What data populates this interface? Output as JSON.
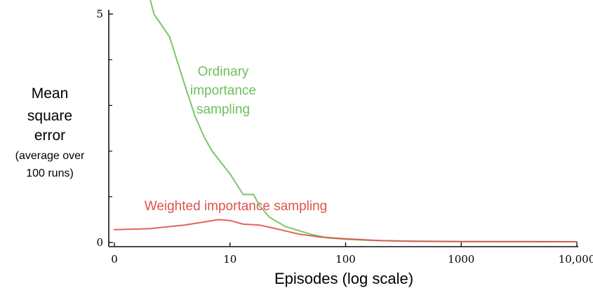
{
  "chart_data": {
    "type": "line",
    "xscale": "log",
    "xlabel": "Episodes (log scale)",
    "ylabel_lines": [
      "Mean",
      "square",
      "error"
    ],
    "ylabel_sub_lines": [
      "(average over",
      "100 runs)"
    ],
    "xlim": [
      1,
      10000
    ],
    "ylim": [
      0,
      5
    ],
    "x_ticks": [
      {
        "value": 1,
        "label": "0"
      },
      {
        "value": 10,
        "label": "10"
      },
      {
        "value": 100,
        "label": "100"
      },
      {
        "value": 1000,
        "label": "1000"
      },
      {
        "value": 10000,
        "label": "10,000"
      }
    ],
    "y_ticks": [
      {
        "value": 0,
        "label": "0"
      },
      {
        "value": 5,
        "label": "5"
      }
    ],
    "y_minor_ticks": [
      1,
      2,
      3,
      4
    ],
    "grid": false,
    "series": [
      {
        "name_lines": [
          "Ordinary",
          "importance",
          "sampling"
        ],
        "color": "#6dbf5a",
        "points": [
          [
            2,
            5.4
          ],
          [
            2.2,
            5.0
          ],
          [
            3,
            4.5
          ],
          [
            4,
            3.5
          ],
          [
            5,
            2.75
          ],
          [
            6,
            2.3
          ],
          [
            7,
            2.0
          ],
          [
            10,
            1.5
          ],
          [
            13,
            1.05
          ],
          [
            16,
            1.05
          ],
          [
            18,
            0.8
          ],
          [
            22,
            0.55
          ],
          [
            30,
            0.35
          ],
          [
            50,
            0.18
          ],
          [
            70,
            0.1
          ],
          [
            100,
            0.07
          ],
          [
            150,
            0.05
          ],
          [
            300,
            0.03
          ],
          [
            1000,
            0.02
          ],
          [
            10000,
            0.015
          ]
        ]
      },
      {
        "name": "Weighted importance sampling",
        "color": "#e0524a",
        "points": [
          [
            1,
            0.28
          ],
          [
            2,
            0.3
          ],
          [
            4,
            0.38
          ],
          [
            6,
            0.45
          ],
          [
            8,
            0.5
          ],
          [
            10,
            0.48
          ],
          [
            13,
            0.4
          ],
          [
            18,
            0.38
          ],
          [
            25,
            0.3
          ],
          [
            40,
            0.18
          ],
          [
            60,
            0.12
          ],
          [
            100,
            0.08
          ],
          [
            200,
            0.04
          ],
          [
            400,
            0.025
          ],
          [
            1000,
            0.02
          ],
          [
            10000,
            0.015
          ]
        ]
      }
    ]
  }
}
